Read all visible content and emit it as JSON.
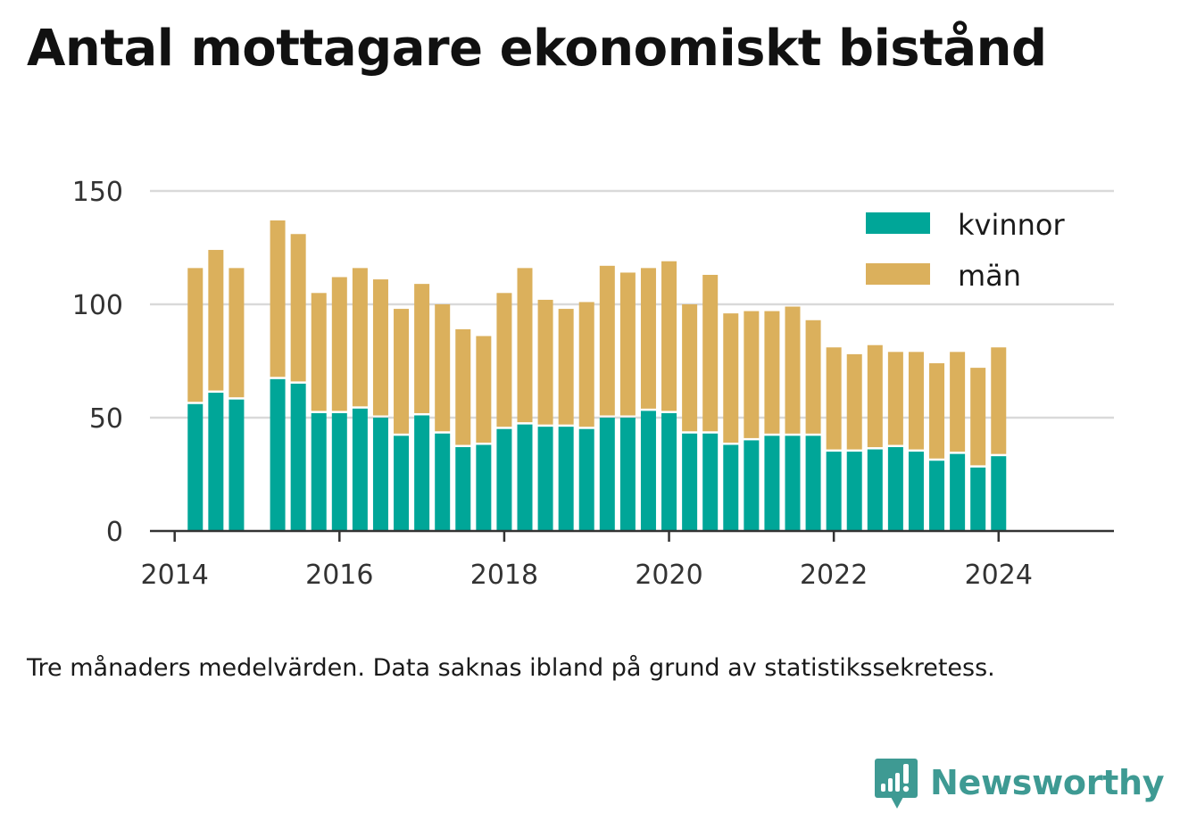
{
  "title": "Antal mottagare ekonomiskt bistånd",
  "note": "Tre månaders medelvärden. Data saknas ibland på grund av statistikssekretess.",
  "brand": {
    "name": "Newsworthy",
    "icon": "newsworthy-logo-icon"
  },
  "colors": {
    "kvinnor": "#00a698",
    "man": "#dbb05c",
    "grid": "#d9d9d9",
    "axis": "#333333",
    "tick_text": "#333333"
  },
  "chart_data": {
    "type": "bar",
    "stacked": true,
    "title": "Antal mottagare ekonomiskt bistånd",
    "xlabel": "",
    "ylabel": "",
    "ylim": [
      0,
      150
    ],
    "xlim": [
      2013.7,
      2025.4
    ],
    "y_ticks": [
      0,
      50,
      100,
      150
    ],
    "x_ticks": [
      "2014",
      "2016",
      "2018",
      "2020",
      "2022",
      "2024"
    ],
    "grid": true,
    "legend": "top-right",
    "x": [
      2014.25,
      2014.5,
      2014.75,
      2015.25,
      2015.5,
      2015.75,
      2016.0,
      2016.25,
      2016.5,
      2016.75,
      2017.0,
      2017.25,
      2017.5,
      2017.75,
      2018.0,
      2018.25,
      2018.5,
      2018.75,
      2019.0,
      2019.25,
      2019.5,
      2019.75,
      2020.0,
      2020.25,
      2020.5,
      2020.75,
      2021.0,
      2021.25,
      2021.5,
      2021.75,
      2022.0,
      2022.25,
      2022.5,
      2022.75,
      2023.0,
      2023.25,
      2023.5,
      2023.75,
      2024.0
    ],
    "series": [
      {
        "name": "kvinnor",
        "values": [
          56,
          61,
          58,
          67,
          65,
          52,
          52,
          54,
          50,
          42,
          51,
          43,
          37,
          38,
          45,
          47,
          46,
          46,
          45,
          50,
          50,
          53,
          52,
          43,
          43,
          38,
          40,
          42,
          42,
          42,
          35,
          35,
          36,
          37,
          35,
          31,
          34,
          28,
          33
        ]
      },
      {
        "name": "män",
        "values": [
          60,
          63,
          58,
          70,
          66,
          53,
          60,
          62,
          61,
          56,
          58,
          57,
          52,
          48,
          60,
          69,
          56,
          52,
          56,
          67,
          64,
          63,
          67,
          57,
          70,
          58,
          57,
          55,
          57,
          51,
          46,
          43,
          46,
          42,
          44,
          43,
          45,
          44,
          48
        ]
      }
    ]
  }
}
